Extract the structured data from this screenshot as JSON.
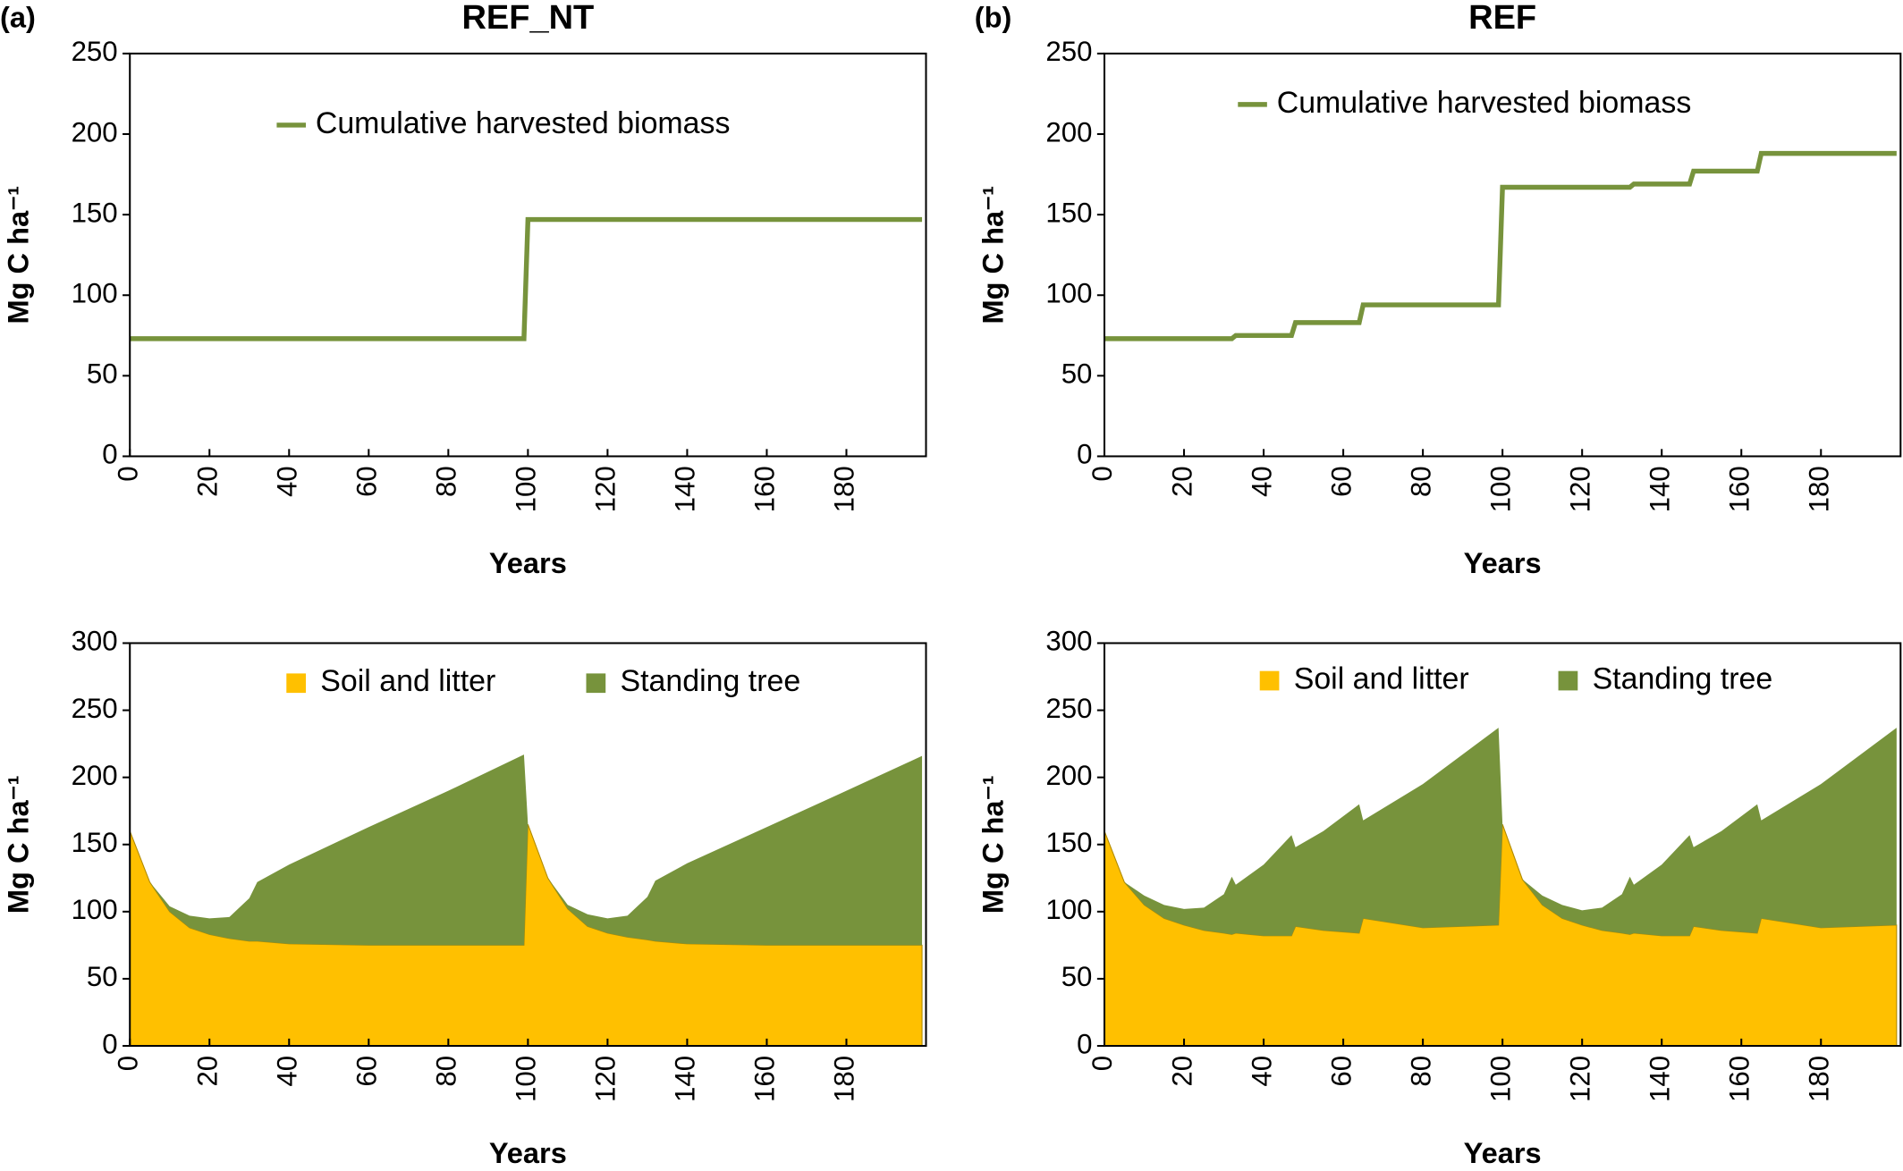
{
  "chart_data": [
    {
      "type": "line",
      "panel": "(a)",
      "title": "REF_NT",
      "xlabel": "Years",
      "ylabel": "Mg C ha⁻¹",
      "xlim": [
        0,
        200
      ],
      "xticks": [
        0,
        20,
        40,
        60,
        80,
        100,
        120,
        140,
        160,
        180
      ],
      "ylim": [
        0,
        250
      ],
      "yticks": [
        0,
        50,
        100,
        150,
        200,
        250
      ],
      "x": [
        0,
        99,
        100,
        199
      ],
      "series": [
        {
          "name": "Cumulative harvested biomass",
          "color": "#77933c",
          "values": [
            73,
            73,
            147,
            147
          ]
        }
      ]
    },
    {
      "type": "line",
      "panel": "(b)",
      "title": "REF",
      "xlabel": "Years",
      "ylabel": "Mg C ha⁻¹",
      "xlim": [
        0,
        200
      ],
      "xticks": [
        0,
        20,
        40,
        60,
        80,
        100,
        120,
        140,
        160,
        180
      ],
      "ylim": [
        0,
        250
      ],
      "yticks": [
        0,
        50,
        100,
        150,
        200,
        250
      ],
      "x": [
        0,
        32,
        33,
        47,
        48,
        64,
        65,
        99,
        100,
        132,
        133,
        147,
        148,
        164,
        165,
        199
      ],
      "series": [
        {
          "name": "Cumulative harvested biomass",
          "color": "#77933c",
          "values": [
            73,
            73,
            75,
            75,
            83,
            83,
            94,
            94,
            167,
            167,
            169,
            169,
            177,
            177,
            188,
            188
          ]
        }
      ]
    },
    {
      "type": "stacked_area",
      "xlabel": "Years",
      "ylabel": "Mg C ha⁻¹",
      "xlim": [
        0,
        200
      ],
      "xticks": [
        0,
        20,
        40,
        60,
        80,
        100,
        120,
        140,
        160,
        180
      ],
      "ylim": [
        0,
        300
      ],
      "yticks": [
        0,
        50,
        100,
        150,
        200,
        250,
        300
      ],
      "x": [
        0,
        5,
        10,
        15,
        20,
        25,
        30,
        32,
        40,
        60,
        80,
        99,
        100,
        105,
        110,
        115,
        120,
        125,
        130,
        132,
        140,
        160,
        180,
        199
      ],
      "series": [
        {
          "name": "Soil and litter",
          "color": "#ffc000",
          "values": [
            160,
            122,
            100,
            88,
            83,
            80,
            78,
            78,
            76,
            75,
            75,
            75,
            165,
            125,
            102,
            89,
            84,
            81,
            79,
            78,
            76,
            75,
            75,
            75
          ]
        },
        {
          "name": "Standing tree",
          "color": "#77933c",
          "values": [
            0,
            0,
            4,
            9,
            12,
            16,
            32,
            44,
            59,
            88,
            115,
            142,
            0,
            0,
            3,
            9,
            11,
            16,
            32,
            45,
            60,
            88,
            115,
            141
          ]
        }
      ]
    },
    {
      "type": "stacked_area",
      "xlabel": "Years",
      "ylabel": "Mg C ha⁻¹",
      "xlim": [
        0,
        200
      ],
      "xticks": [
        0,
        20,
        40,
        60,
        80,
        100,
        120,
        140,
        160,
        180
      ],
      "ylim": [
        0,
        300
      ],
      "yticks": [
        0,
        50,
        100,
        150,
        200,
        250,
        300
      ],
      "x": [
        0,
        5,
        10,
        15,
        20,
        25,
        30,
        32,
        33,
        40,
        47,
        48,
        55,
        64,
        65,
        80,
        99,
        100,
        105,
        110,
        115,
        120,
        125,
        130,
        132,
        133,
        140,
        147,
        148,
        155,
        164,
        165,
        180,
        199
      ],
      "series": [
        {
          "name": "Soil and litter",
          "color": "#ffc000",
          "values": [
            160,
            122,
            105,
            95,
            90,
            86,
            84,
            83,
            84,
            82,
            82,
            89,
            86,
            84,
            95,
            88,
            90,
            165,
            124,
            105,
            95,
            90,
            86,
            84,
            83,
            84,
            82,
            82,
            89,
            86,
            84,
            95,
            88,
            90
          ]
        },
        {
          "name": "Standing tree",
          "color": "#77933c",
          "values": [
            0,
            0,
            7,
            10,
            12,
            17,
            29,
            43,
            36,
            53,
            75,
            59,
            74,
            96,
            73,
            107,
            147,
            0,
            0,
            7,
            10,
            11,
            17,
            29,
            43,
            36,
            53,
            75,
            59,
            74,
            96,
            73,
            107,
            147
          ]
        }
      ]
    }
  ]
}
